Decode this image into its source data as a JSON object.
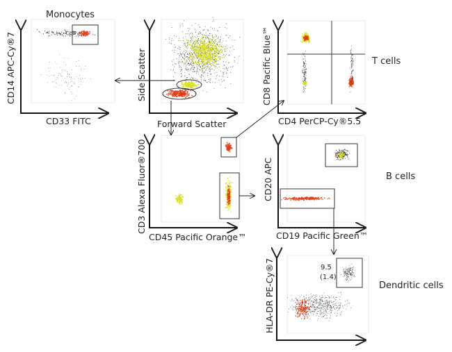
{
  "panels": [
    {
      "id": "monocytes",
      "title": "Monocytes",
      "ylabel": "CD14 APC-Cy®7",
      "xlabel": "CD33 FITC"
    },
    {
      "id": "scatter",
      "ylabel": "Side Scatter",
      "xlabel": "Forward Scatter"
    },
    {
      "id": "tcells",
      "ylabel": "CD8 Pacific Blue™",
      "xlabel": "CD4 PerCP-Cy®5.5",
      "population": "T cells"
    },
    {
      "id": "cd45",
      "ylabel": "CD3 Alexa Fluor®700",
      "xlabel": "CD45 Pacific Orange™"
    },
    {
      "id": "bcells",
      "ylabel": "CD20 APC",
      "xlabel": "CD19 Pacific Green™",
      "population": "B cells"
    },
    {
      "id": "dc",
      "ylabel": "HLA-DR PE-Cy®7",
      "xlabel": "",
      "population": "Dendritic cells",
      "gate_value": "9.5",
      "gate_value_sub": "(1.4)"
    }
  ],
  "colors": {
    "high_density": "#e0401a",
    "mid_density": "#d8e020",
    "low_density": "#222222",
    "gate": "#333333"
  }
}
